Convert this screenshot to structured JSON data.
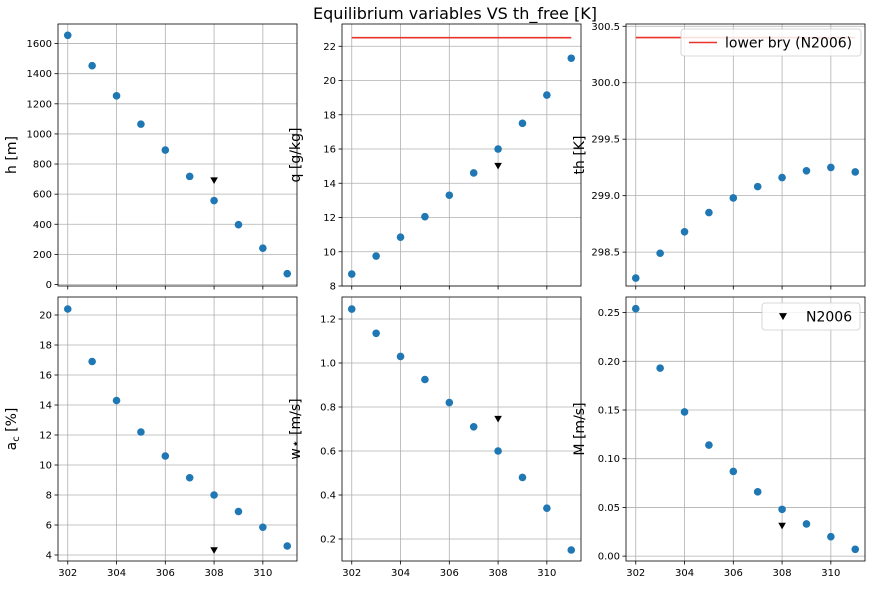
{
  "suptitle": "Equilibrium variables VS th_free [K]",
  "colors": {
    "series": "#1f77b4",
    "ref": "#000000",
    "bound": "#e8332a"
  },
  "legend_n2006": "N2006",
  "legend_lower": "lower bry (N2006)",
  "chart_data": [
    {
      "type": "scatter",
      "ylabel": "h [m]",
      "x": [
        302,
        303,
        304,
        305,
        306,
        307,
        308,
        309,
        310,
        311
      ],
      "y": [
        1655,
        1453,
        1253,
        1065,
        893,
        718,
        557,
        397,
        241,
        72
      ],
      "ref": {
        "x": 308,
        "y": 690
      },
      "xlim": [
        301.6,
        311.4
      ],
      "ylim": [
        -10,
        1730
      ],
      "xticks": [
        302,
        304,
        306,
        308,
        310
      ],
      "yticks": [
        0,
        200,
        400,
        600,
        800,
        1000,
        1200,
        1400,
        1600
      ],
      "grid": true
    },
    {
      "type": "scatter",
      "ylabel": "q [g/kg]",
      "x": [
        302,
        303,
        304,
        305,
        306,
        307,
        308,
        309,
        310,
        311
      ],
      "y": [
        8.7,
        9.75,
        10.85,
        12.05,
        13.3,
        14.6,
        16.0,
        17.5,
        19.15,
        21.3
      ],
      "ref": {
        "x": 308,
        "y": 15.0
      },
      "bound": {
        "y": 22.5,
        "x": [
          302,
          311
        ]
      },
      "xlim": [
        301.6,
        311.4
      ],
      "ylim": [
        8,
        23.3
      ],
      "xticks": [
        302,
        304,
        306,
        308,
        310
      ],
      "yticks": [
        8,
        10,
        12,
        14,
        16,
        18,
        20,
        22
      ],
      "grid": true
    },
    {
      "type": "scatter",
      "ylabel": "th [K]",
      "x": [
        302,
        303,
        304,
        305,
        306,
        307,
        308,
        309,
        310,
        311
      ],
      "y": [
        298.27,
        298.49,
        298.68,
        298.85,
        298.98,
        299.08,
        299.16,
        299.22,
        299.25,
        299.21
      ],
      "bound": {
        "y": 300.4,
        "x": [
          302,
          311
        ]
      },
      "xlim": [
        301.6,
        311.4
      ],
      "ylim": [
        298.2,
        300.52
      ],
      "xticks": [
        302,
        304,
        306,
        308,
        310
      ],
      "yticks": [
        298.5,
        299.0,
        299.5,
        300.0,
        300.5
      ],
      "ytick_labels": [
        "298.5",
        "299.0",
        "299.5",
        "300.0",
        "300.5"
      ],
      "grid": true,
      "legend": "upper-right"
    },
    {
      "type": "scatter",
      "ylabel": "ac [%]",
      "ylabel_main": "a",
      "ylabel_sub": "c",
      "ylabel_rest": " [%]",
      "x": [
        302,
        303,
        304,
        305,
        306,
        307,
        308,
        309,
        310,
        311
      ],
      "y": [
        20.4,
        16.9,
        14.3,
        12.2,
        10.6,
        9.15,
        8.0,
        6.9,
        5.85,
        4.6
      ],
      "ref": {
        "x": 308,
        "y": 4.3
      },
      "xlim": [
        301.6,
        311.4
      ],
      "ylim": [
        3.6,
        21.2
      ],
      "xticks": [
        302,
        304,
        306,
        308,
        310
      ],
      "yticks": [
        4,
        6,
        8,
        10,
        12,
        14,
        16,
        18,
        20
      ],
      "grid": true
    },
    {
      "type": "scatter",
      "ylabel": "w⋆ [m/s]",
      "x": [
        302,
        303,
        304,
        305,
        306,
        307,
        308,
        309,
        310,
        311
      ],
      "y": [
        1.245,
        1.135,
        1.03,
        0.925,
        0.82,
        0.71,
        0.6,
        0.48,
        0.34,
        0.15
      ],
      "ref": {
        "x": 308,
        "y": 0.745
      },
      "xlim": [
        301.6,
        311.4
      ],
      "ylim": [
        0.1,
        1.3
      ],
      "xticks": [
        302,
        304,
        306,
        308,
        310
      ],
      "yticks": [
        0.2,
        0.4,
        0.6,
        0.8,
        1.0,
        1.2
      ],
      "ytick_labels": [
        "0.2",
        "0.4",
        "0.6",
        "0.8",
        "1.0",
        "1.2"
      ],
      "grid": true
    },
    {
      "type": "scatter",
      "ylabel": "M [m/s]",
      "x": [
        302,
        303,
        304,
        305,
        306,
        307,
        308,
        309,
        310,
        311
      ],
      "y": [
        0.254,
        0.193,
        0.148,
        0.114,
        0.087,
        0.066,
        0.048,
        0.033,
        0.02,
        0.007
      ],
      "ref": {
        "x": 308,
        "y": 0.031
      },
      "xlim": [
        301.6,
        311.4
      ],
      "ylim": [
        -0.005,
        0.266
      ],
      "xticks": [
        302,
        304,
        306,
        308,
        310
      ],
      "yticks": [
        0.0,
        0.05,
        0.1,
        0.15,
        0.2,
        0.25
      ],
      "ytick_labels": [
        "0.00",
        "0.05",
        "0.10",
        "0.15",
        "0.20",
        "0.25"
      ],
      "grid": true,
      "legend": "upper-right"
    }
  ]
}
